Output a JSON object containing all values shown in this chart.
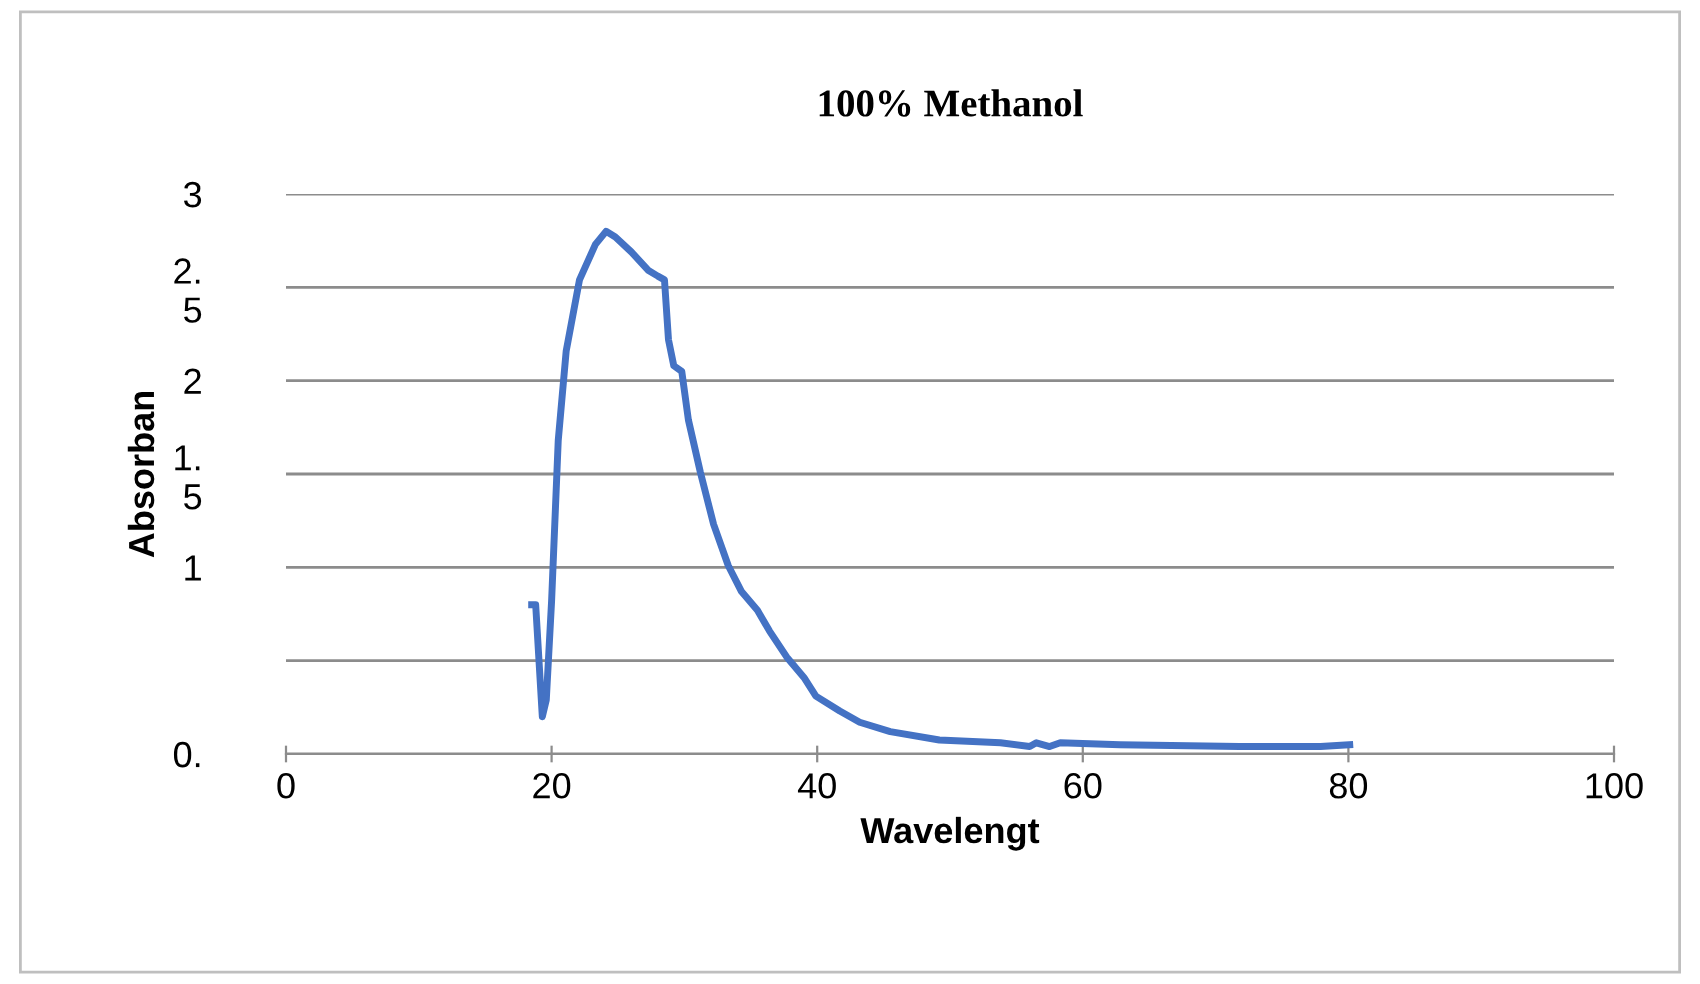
{
  "chart_data": {
    "type": "line",
    "title": "100% Methanol",
    "xlabel": "Wavelengt",
    "ylabel": "Absorban",
    "series": [
      {
        "color": "#4472c4",
        "x": [
          18.5,
          18.8,
          19.3,
          19.6,
          20,
          20.5,
          21.1,
          22.1,
          23.3,
          24.1,
          24.8,
          26,
          27.3,
          28,
          28.5,
          28.8,
          29.2,
          29.8,
          30.3,
          31.2,
          32.2,
          33.3,
          34.3,
          35.5,
          36.4,
          37.7,
          39,
          39.9,
          41.7,
          43.2,
          45.5,
          49.2,
          53.8,
          56,
          56.5,
          57.5,
          58.3,
          62.8,
          71.8,
          77.9,
          80.1
        ],
        "values": [
          0.8,
          0.8,
          0.2,
          0.29,
          0.82,
          1.68,
          2.16,
          2.54,
          2.73,
          2.8,
          2.77,
          2.69,
          2.59,
          2.56,
          2.54,
          2.22,
          2.08,
          2.05,
          1.79,
          1.51,
          1.23,
          1.01,
          0.87,
          0.77,
          0.66,
          0.52,
          0.41,
          0.31,
          0.23,
          0.17,
          0.12,
          0.075,
          0.06,
          0.04,
          0.06,
          0.04,
          0.06,
          0.05,
          0.04,
          0.04,
          0.05
        ]
      }
    ],
    "xlim": [
      0,
      100
    ],
    "xticks": [
      0,
      20,
      40,
      60,
      80,
      100
    ],
    "ylim": [
      0,
      3
    ],
    "yticks": [
      {
        "value": 0,
        "label": "0."
      },
      {
        "value": 0.5,
        "label": null
      },
      1,
      {
        "value": 1.5,
        "label": "1.\n5"
      },
      2,
      {
        "value": 2.5,
        "label": "2.\n5"
      },
      3
    ],
    "grid": "y",
    "legend": false,
    "marker": "none",
    "line_style": "solid"
  }
}
